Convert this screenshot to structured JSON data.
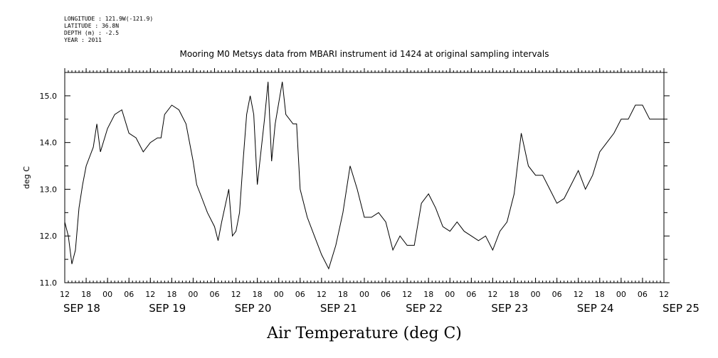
{
  "header": {
    "longitude": "LONGITUDE : 121.9W(-121.9)",
    "latitude": "LATITUDE : 36.8N",
    "depth": "DEPTH (m) : -2.5",
    "year": "YEAR : 2011"
  },
  "chart_data": {
    "type": "line",
    "title": "Mooring M0 Metsys data from MBARI instrument id 1424 at original sampling intervals",
    "xlabel": "Air Temperature (deg C)",
    "ylabel": "deg C",
    "ylim": [
      11.0,
      15.5
    ],
    "yticks": [
      "11.0",
      "12.0",
      "13.0",
      "14.0",
      "15.0"
    ],
    "xlim_hours": [
      0,
      168
    ],
    "hour_ticks": [
      "12",
      "18",
      "00",
      "06",
      "12",
      "18",
      "00",
      "06",
      "12",
      "18",
      "00",
      "06",
      "12",
      "18",
      "00",
      "06",
      "12",
      "18",
      "00",
      "06",
      "12",
      "18",
      "00",
      "06",
      "12",
      "18",
      "00",
      "06",
      "12"
    ],
    "day_labels": [
      "SEP 18",
      "SEP 19",
      "SEP 20",
      "SEP 21",
      "SEP 22",
      "SEP 23",
      "SEP 24",
      "SEP 25"
    ],
    "x_start": "2011-09-18T12:00",
    "series": [
      {
        "x": [
          "2011-09-18T12:00",
          "2011-09-18T13:00",
          "2011-09-18T14:00",
          "2011-09-18T15:00",
          "2011-09-18T16:00",
          "2011-09-18T17:00",
          "2011-09-18T18:00",
          "2011-09-18T20:00",
          "2011-09-18T21:00",
          "2011-09-18T22:00",
          "2011-09-19T00:00",
          "2011-09-19T02:00",
          "2011-09-19T04:00",
          "2011-09-19T06:00",
          "2011-09-19T08:00",
          "2011-09-19T10:00",
          "2011-09-19T12:00",
          "2011-09-19T14:00",
          "2011-09-19T15:00",
          "2011-09-19T16:00",
          "2011-09-19T18:00",
          "2011-09-19T20:00",
          "2011-09-19T22:00",
          "2011-09-20T00:00",
          "2011-09-20T01:00",
          "2011-09-20T02:00",
          "2011-09-20T04:00",
          "2011-09-20T06:00",
          "2011-09-20T07:00",
          "2011-09-20T08:00",
          "2011-09-20T10:00",
          "2011-09-20T11:00",
          "2011-09-20T12:00",
          "2011-09-20T13:00",
          "2011-09-20T14:00",
          "2011-09-20T15:00",
          "2011-09-20T16:00",
          "2011-09-20T17:00",
          "2011-09-20T18:00",
          "2011-09-20T20:00",
          "2011-09-20T21:00",
          "2011-09-20T22:00",
          "2011-09-20T23:00",
          "2011-09-21T01:00",
          "2011-09-21T02:00",
          "2011-09-21T03:00",
          "2011-09-21T04:00",
          "2011-09-21T05:00",
          "2011-09-21T06:00",
          "2011-09-21T08:00",
          "2011-09-21T10:00",
          "2011-09-21T12:00",
          "2011-09-21T14:00",
          "2011-09-21T16:00",
          "2011-09-21T18:00",
          "2011-09-21T20:00",
          "2011-09-21T22:00",
          "2011-09-21T23:00",
          "2011-09-22T00:00",
          "2011-09-22T02:00",
          "2011-09-22T04:00",
          "2011-09-22T06:00",
          "2011-09-22T08:00",
          "2011-09-22T10:00",
          "2011-09-22T12:00",
          "2011-09-22T14:00",
          "2011-09-22T16:00",
          "2011-09-22T18:00",
          "2011-09-22T20:00",
          "2011-09-22T22:00",
          "2011-09-23T00:00",
          "2011-09-23T02:00",
          "2011-09-23T04:00",
          "2011-09-23T06:00",
          "2011-09-23T08:00",
          "2011-09-23T10:00",
          "2011-09-23T12:00",
          "2011-09-23T14:00",
          "2011-09-23T16:00",
          "2011-09-23T18:00",
          "2011-09-23T20:00",
          "2011-09-23T22:00",
          "2011-09-24T00:00",
          "2011-09-24T02:00",
          "2011-09-24T04:00",
          "2011-09-24T06:00",
          "2011-09-24T08:00",
          "2011-09-24T10:00",
          "2011-09-24T12:00",
          "2011-09-24T14:00",
          "2011-09-24T16:00",
          "2011-09-24T18:00",
          "2011-09-24T20:00",
          "2011-09-24T22:00",
          "2011-09-25T00:00",
          "2011-09-25T02:00",
          "2011-09-25T04:00",
          "2011-09-25T06:00",
          "2011-09-25T08:00",
          "2011-09-25T10:00",
          "2011-09-25T12:00"
        ],
        "y": [
          12.3,
          12.0,
          11.4,
          11.7,
          12.6,
          13.1,
          13.5,
          13.9,
          14.4,
          13.8,
          14.3,
          14.6,
          14.7,
          14.2,
          14.1,
          13.8,
          14.0,
          14.1,
          14.1,
          14.6,
          14.8,
          14.7,
          14.4,
          13.6,
          13.1,
          12.9,
          12.5,
          12.2,
          11.9,
          12.3,
          13.0,
          12.0,
          12.1,
          12.5,
          13.6,
          14.6,
          15.0,
          14.6,
          13.1,
          14.5,
          15.3,
          13.6,
          14.4,
          15.3,
          14.6,
          14.5,
          14.4,
          14.4,
          13.0,
          12.4,
          12.0,
          11.6,
          11.3,
          11.8,
          12.5,
          13.5,
          13.0,
          12.7,
          12.4,
          12.4,
          12.5,
          12.3,
          11.7,
          12.0,
          11.8,
          11.8,
          12.7,
          12.9,
          12.6,
          12.2,
          12.1,
          12.3,
          12.1,
          12.0,
          11.9,
          12.0,
          11.7,
          12.1,
          12.3,
          12.9,
          14.2,
          13.5,
          13.3,
          13.3,
          13.0,
          12.7,
          12.8,
          13.1,
          13.4,
          13.0,
          13.3,
          13.8,
          14.0,
          14.2,
          14.5,
          14.5,
          14.8,
          14.8,
          14.5,
          14.5,
          14.5
        ]
      }
    ]
  }
}
